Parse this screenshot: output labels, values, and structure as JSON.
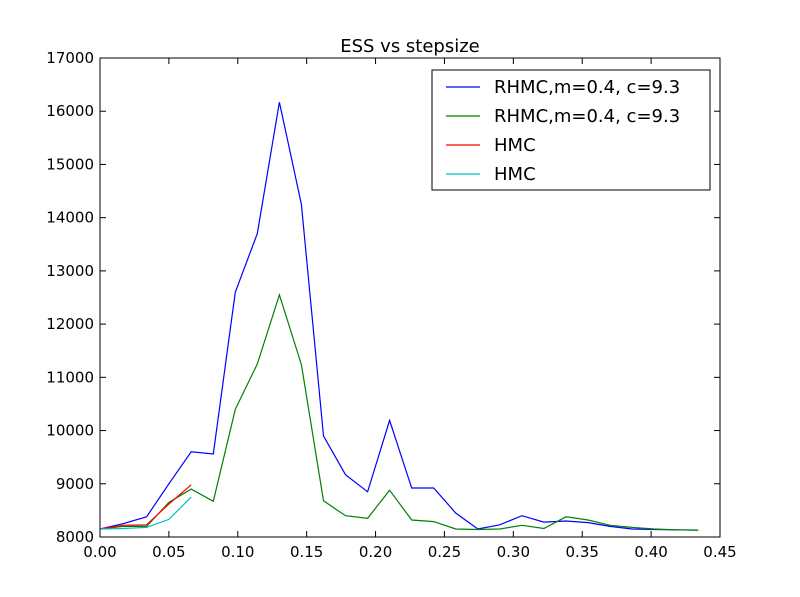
{
  "chart_data": {
    "type": "line",
    "title": "ESS vs stepsize",
    "xlabel": "",
    "ylabel": "",
    "xlim": [
      0.0,
      0.45
    ],
    "ylim": [
      8000,
      17000
    ],
    "x_ticks": [
      "0.00",
      "0.05",
      "0.10",
      "0.15",
      "0.20",
      "0.25",
      "0.30",
      "0.35",
      "0.40",
      "0.45"
    ],
    "y_ticks": [
      "8000",
      "9000",
      "10000",
      "11000",
      "12000",
      "13000",
      "14000",
      "15000",
      "16000",
      "17000"
    ],
    "x_tick_values": [
      0.0,
      0.05,
      0.1,
      0.15,
      0.2,
      0.25,
      0.3,
      0.35,
      0.4,
      0.45
    ],
    "y_tick_values": [
      8000,
      9000,
      10000,
      11000,
      12000,
      13000,
      14000,
      15000,
      16000,
      17000
    ],
    "grid": false,
    "legend_position": "top-right",
    "series": [
      {
        "name": "RHMC,m=0.4, c=9.3",
        "color": "#0000ff",
        "x": [
          0.0,
          0.0168,
          0.0338,
          0.05,
          0.0662,
          0.0822,
          0.0982,
          0.1142,
          0.1302,
          0.1462,
          0.1622,
          0.1782,
          0.1942,
          0.2102,
          0.2262,
          0.2422,
          0.2582,
          0.2742,
          0.2902,
          0.3062,
          0.3222,
          0.3382,
          0.3542,
          0.3702,
          0.3862,
          0.4022,
          0.4182,
          0.4342
        ],
        "y": [
          8150,
          8250,
          8380,
          9000,
          9600,
          9560,
          12600,
          13700,
          16170,
          14250,
          9900,
          9170,
          8850,
          10190,
          8920,
          8920,
          8450,
          8150,
          8230,
          8400,
          8280,
          8300,
          8270,
          8200,
          8150,
          8140,
          8135,
          8130
        ]
      },
      {
        "name": "RHMC,m=0.4, c=9.3",
        "color": "#008000",
        "x": [
          0.0,
          0.0168,
          0.0338,
          0.05,
          0.0662,
          0.0822,
          0.0982,
          0.1142,
          0.1302,
          0.1462,
          0.1622,
          0.1782,
          0.1942,
          0.2102,
          0.2262,
          0.2422,
          0.2582,
          0.2742,
          0.2902,
          0.3062,
          0.3222,
          0.3382,
          0.3542,
          0.3702,
          0.3862,
          0.4022,
          0.4182,
          0.4342
        ],
        "y": [
          8150,
          8200,
          8200,
          8650,
          8900,
          8670,
          10400,
          11250,
          12550,
          11240,
          8680,
          8400,
          8350,
          8880,
          8320,
          8290,
          8150,
          8140,
          8150,
          8220,
          8160,
          8380,
          8320,
          8220,
          8180,
          8150,
          8135,
          8130
        ]
      },
      {
        "name": "HMC",
        "color": "#ff0000",
        "x": [
          0.0,
          0.0168,
          0.0338,
          0.05,
          0.0662
        ],
        "y": [
          8150,
          8220,
          8230,
          8620,
          8980
        ]
      },
      {
        "name": "HMC",
        "color": "#00bfbf",
        "x": [
          0.0,
          0.0168,
          0.0338,
          0.05,
          0.0662
        ],
        "y": [
          8150,
          8160,
          8180,
          8330,
          8750
        ]
      }
    ]
  }
}
